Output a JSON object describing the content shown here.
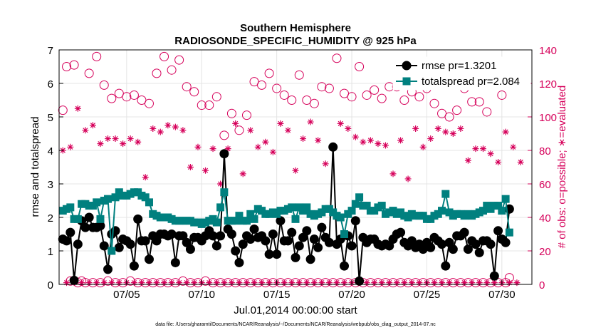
{
  "chart_data": {
    "type": "line",
    "title": "Southern Hemisphere",
    "subtitle": "RADIOSONDE_SPECIFIC_HUMIDITY @ 925 hPa",
    "xlabel": "Jul.01,2014 00:00:00 start",
    "ylabel": "rmse and totalspread",
    "y2label": "# of obs: o=possible; ∗=evaluated",
    "footnote": "data file: /Users/gharamti/Documents/NCAR/Reanalysis/~/Documents/NCAR/Reanalysis/webpub/obs_diag_output_2014-07.nc",
    "x_tick_labels": [
      "07/05",
      "07/10",
      "07/15",
      "07/20",
      "07/25",
      "07/30"
    ],
    "x_tick_days": [
      5,
      10,
      15,
      20,
      25,
      30
    ],
    "xlim_days": [
      0.5,
      32
    ],
    "ylim": [
      0,
      7
    ],
    "y_ticks": [
      0,
      1,
      2,
      3,
      4,
      5,
      6,
      7
    ],
    "y2lim": [
      0,
      140
    ],
    "y2_ticks": [
      0,
      20,
      40,
      60,
      80,
      100,
      120,
      140
    ],
    "grid": true,
    "legend_position": "top-right",
    "x_days": [
      0.75,
      1.0,
      1.25,
      1.5,
      1.75,
      2.0,
      2.25,
      2.5,
      2.75,
      3.0,
      3.25,
      3.5,
      3.75,
      4.0,
      4.25,
      4.5,
      4.75,
      5.0,
      5.25,
      5.5,
      5.75,
      6.0,
      6.25,
      6.5,
      6.75,
      7.0,
      7.25,
      7.5,
      7.75,
      8.0,
      8.25,
      8.5,
      8.75,
      9.0,
      9.25,
      9.5,
      9.75,
      10.0,
      10.25,
      10.5,
      10.75,
      11.0,
      11.25,
      11.5,
      11.75,
      12.0,
      12.25,
      12.5,
      12.75,
      13.0,
      13.25,
      13.5,
      13.75,
      14.0,
      14.25,
      14.5,
      14.75,
      15.0,
      15.25,
      15.5,
      15.75,
      16.0,
      16.25,
      16.5,
      16.75,
      17.0,
      17.25,
      17.5,
      17.75,
      18.0,
      18.25,
      18.5,
      18.75,
      19.0,
      19.25,
      19.5,
      19.75,
      20.0,
      20.25,
      20.5,
      20.75,
      21.0,
      21.25,
      21.5,
      21.75,
      22.0,
      22.25,
      22.5,
      22.75,
      23.0,
      23.25,
      23.5,
      23.75,
      24.0,
      24.25,
      24.5,
      24.75,
      25.0,
      25.25,
      25.5,
      25.75,
      26.0,
      26.25,
      26.5,
      26.75,
      27.0,
      27.25,
      27.5,
      27.75,
      28.0,
      28.25,
      28.5,
      28.75,
      29.0,
      29.25,
      29.5,
      29.75,
      30.0,
      30.25,
      30.5,
      30.75,
      31.0,
      31.25,
      31.5,
      31.75
    ],
    "series": [
      {
        "name": "rmse pr=1.3201",
        "color": "#000000",
        "marker": "circle",
        "values": [
          1.35,
          1.3,
          1.55,
          0.12,
          1.2,
          1.9,
          1.7,
          2.0,
          1.7,
          1.7,
          1.75,
          1.15,
          0.45,
          1.5,
          1.6,
          1.1,
          1.35,
          1.3,
          1.2,
          0.55,
          1.95,
          1.3,
          1.3,
          0.75,
          1.45,
          1.3,
          1.5,
          1.5,
          1.45,
          1.5,
          0.65,
          1.45,
          1.45,
          1.25,
          1.05,
          1.4,
          1.4,
          1.3,
          1.45,
          1.6,
          1.45,
          1.15,
          1.45,
          3.9,
          1.65,
          1.5,
          1.0,
          0.65,
          1.2,
          1.45,
          1.35,
          1.65,
          1.4,
          1.45,
          1.3,
          0.9,
          1.5,
          0.9,
          1.9,
          1.3,
          1.3,
          1.55,
          0.8,
          1.15,
          1.4,
          1.6,
          0.75,
          1.35,
          1.1,
          1.7,
          1.4,
          1.25,
          4.1,
          1.2,
          1.35,
          0.55,
          1.45,
          1.15,
          1.9,
          0.1,
          1.4,
          1.25,
          1.35,
          1.35,
          1.2,
          1.15,
          1.2,
          1.15,
          1.35,
          1.5,
          1.55,
          1.25,
          1.15,
          1.3,
          1.1,
          1.2,
          1.05,
          1.25,
          1.1,
          1.4,
          1.3,
          1.2,
          0.55,
          1.25,
          1.05,
          1.45,
          1.45,
          1.55,
          1.05,
          1.3,
          1.2,
          0.95,
          1.3,
          1.3,
          1.2,
          0.25,
          1.6,
          1.35,
          1.25,
          2.25
        ]
      },
      {
        "name": "totalspread pr=2.084",
        "color": "#00807f",
        "marker": "square",
        "values": [
          2.2,
          2.25,
          2.3,
          1.95,
          1.95,
          2.4,
          2.4,
          2.35,
          2.35,
          2.45,
          1.95,
          2.5,
          2.55,
          1.0,
          2.6,
          2.75,
          2.65,
          2.65,
          2.7,
          2.75,
          2.75,
          2.65,
          2.6,
          2.45,
          2.1,
          2.05,
          2.0,
          2.0,
          2.0,
          1.95,
          1.9,
          1.9,
          1.9,
          1.9,
          1.9,
          1.85,
          1.85,
          1.8,
          1.85,
          1.9,
          1.95,
          1.85,
          2.3,
          2.75,
          1.9,
          1.9,
          1.9,
          2.05,
          1.9,
          1.9,
          2.1,
          1.95,
          2.25,
          2.2,
          2.1,
          2.1,
          2.15,
          2.1,
          2.2,
          2.2,
          2.25,
          2.3,
          1.95,
          2.3,
          2.2,
          2.3,
          2.1,
          2.05,
          2.1,
          2.15,
          2.25,
          2.25,
          2.15,
          2.05,
          2.0,
          1.5,
          2.1,
          2.2,
          2.4,
          2.6,
          2.35,
          2.35,
          2.2,
          2.2,
          2.3,
          2.35,
          2.1,
          2.15,
          2.2,
          2.1,
          2.15,
          2.05,
          2.0,
          2.1,
          2.05,
          2.05,
          2.05,
          1.95,
          1.95,
          2.05,
          2.1,
          2.2,
          2.7,
          2.15,
          2.05,
          2.1,
          2.1,
          2.05,
          2.1,
          2.05,
          2.1,
          2.15,
          2.2,
          2.35,
          2.25,
          2.35,
          2.35,
          2.2,
          2.55,
          1.55
        ]
      },
      {
        "name": "possible",
        "color": "#d6005a",
        "marker": "open-circle",
        "axis": "right",
        "values": [
          104,
          130,
          2,
          131,
          1,
          2,
          1,
          126,
          1,
          136,
          1,
          119,
          2,
          111,
          1,
          114,
          1,
          112,
          2,
          113,
          1,
          110,
          1,
          108,
          1,
          126,
          1,
          136,
          1,
          128,
          1,
          134,
          2,
          118,
          1,
          115,
          1,
          107,
          2,
          107,
          1,
          112,
          1,
          89,
          1,
          102,
          1,
          92,
          1,
          101,
          1,
          121,
          1,
          119,
          1,
          126,
          1,
          117,
          1,
          113,
          1,
          110,
          1,
          125,
          1,
          110,
          1,
          108,
          1,
          118,
          1,
          117,
          1,
          135,
          1,
          114,
          1,
          112,
          1,
          130,
          1,
          113,
          1,
          116,
          1,
          111,
          1,
          118,
          1,
          118,
          1,
          110,
          1,
          115,
          1,
          112,
          1,
          117,
          1,
          108,
          1,
          102,
          1,
          100,
          1,
          104,
          1,
          117,
          1,
          109,
          1,
          109,
          1,
          103,
          1,
          127,
          1,
          113,
          1,
          4
        ]
      },
      {
        "name": "evaluated",
        "color": "#d6005a",
        "marker": "asterisk",
        "axis": "right",
        "values": [
          80,
          1,
          82,
          1,
          105,
          1,
          92,
          1,
          95,
          1,
          84,
          1,
          87,
          1,
          87,
          1,
          84,
          1,
          87,
          1,
          85,
          1,
          64,
          1,
          93,
          1,
          91,
          1,
          95,
          1,
          94,
          1,
          92,
          1,
          70,
          1,
          82,
          1,
          68,
          1,
          81,
          1,
          60,
          1,
          81,
          1,
          96,
          1,
          66,
          1,
          92,
          1,
          82,
          1,
          85,
          1,
          79,
          1,
          96,
          1,
          92,
          1,
          68,
          1,
          87,
          1,
          97,
          1,
          86,
          1,
          72,
          1,
          82,
          1,
          96,
          1,
          93,
          1,
          88,
          1,
          85,
          1,
          86,
          1,
          84,
          1,
          83,
          1,
          66,
          1,
          86,
          1,
          63,
          1,
          93,
          1,
          82,
          1,
          87,
          1,
          93,
          1,
          91,
          1,
          90,
          1,
          93,
          1,
          74,
          1,
          81,
          1,
          81,
          1,
          78,
          1,
          73,
          1,
          91,
          1,
          82,
          1,
          73
        ]
      }
    ]
  }
}
